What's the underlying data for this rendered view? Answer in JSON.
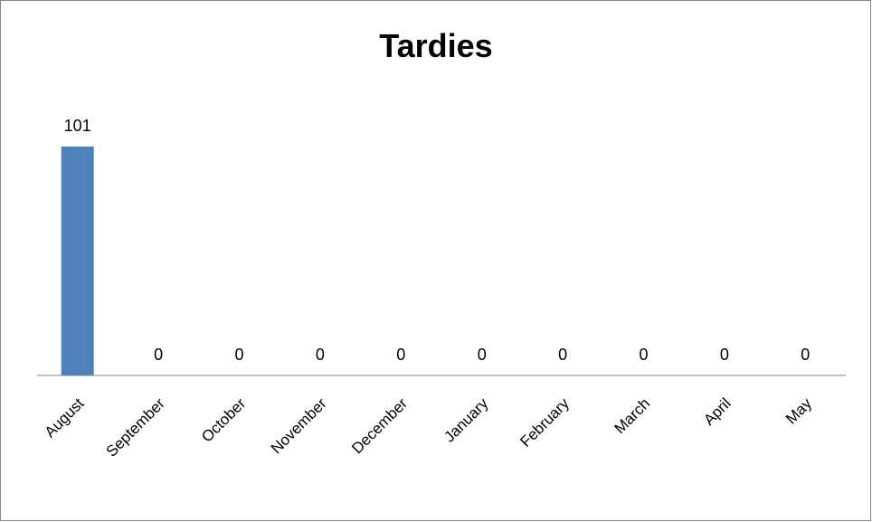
{
  "chart_data": {
    "type": "bar",
    "title": "Tardies",
    "xlabel": "",
    "ylabel": "",
    "categories": [
      "August",
      "September",
      "October",
      "November",
      "December",
      "January",
      "February",
      "March",
      "April",
      "May"
    ],
    "values": [
      101,
      0,
      0,
      0,
      0,
      0,
      0,
      0,
      0,
      0
    ],
    "ylim": [
      0,
      101
    ],
    "grid": false,
    "legend": "none",
    "data_labels": true,
    "bar_color": "#4F81BD",
    "axis_color": "#868686"
  }
}
